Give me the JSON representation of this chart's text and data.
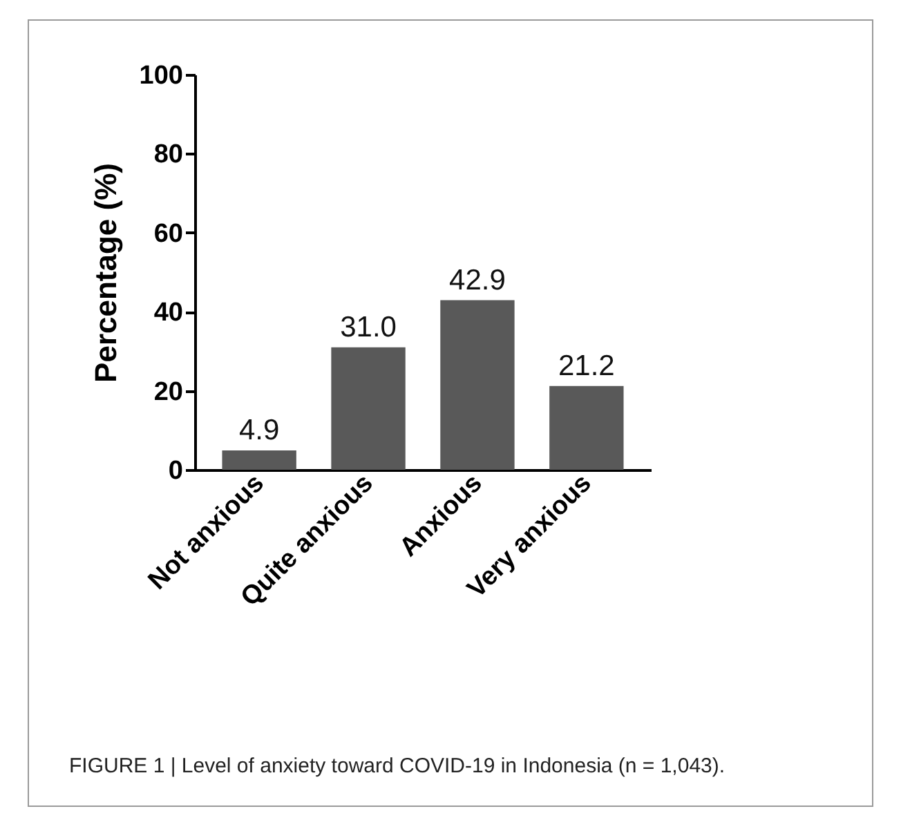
{
  "chart_data": {
    "type": "bar",
    "ylabel": "Percentage (%)",
    "categories": [
      "Not anxious",
      "Quite anxious",
      "Anxious",
      "Very anxious"
    ],
    "values": [
      4.9,
      31.0,
      42.9,
      21.2
    ],
    "value_labels": [
      "4.9",
      "31.0",
      "42.9",
      "21.2"
    ],
    "color": "#595959",
    "ylim": [
      0,
      100
    ],
    "yticks": [
      0,
      20,
      40,
      60,
      80,
      100
    ],
    "grid": false,
    "annotations": [
      "FIGURE 1 | Level of anxiety toward COVID-19 in Indonesia (n = 1,043)."
    ]
  }
}
